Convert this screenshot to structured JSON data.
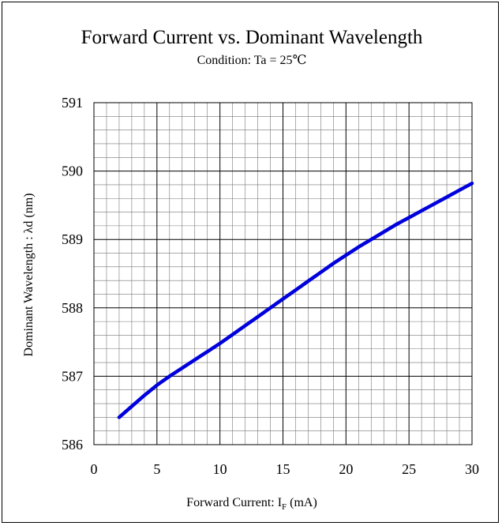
{
  "chart_data": {
    "type": "line",
    "title": "Forward Current vs. Dominant Wavelength",
    "subtitle": "Condition: Ta = 25℃",
    "xlabel": "Forward Current: I",
    "xlabel_sub": "F",
    "xlabel_unit": " (mA)",
    "ylabel": "Dominant Wavelength : λd (nm)",
    "xlim": [
      0,
      30
    ],
    "ylim": [
      586,
      591
    ],
    "xticks": [
      0,
      5,
      10,
      15,
      20,
      25,
      30
    ],
    "yticks": [
      586,
      587,
      588,
      589,
      590,
      591
    ],
    "x_minor_step": 1,
    "y_minor_step": 0.2,
    "grid": true,
    "legend": "none",
    "series": [
      {
        "color": "#0000dd",
        "x": [
          2,
          3,
          4,
          5,
          6,
          7,
          8,
          9,
          10,
          11,
          12,
          13,
          14,
          15,
          16,
          17,
          18,
          19,
          20,
          21,
          22,
          23,
          24,
          25,
          26,
          27,
          28,
          29,
          30
        ],
        "y": [
          586.4,
          586.56,
          586.72,
          586.87,
          587.0,
          587.12,
          587.24,
          587.36,
          587.48,
          587.61,
          587.74,
          587.87,
          588.0,
          588.13,
          588.26,
          588.39,
          588.52,
          588.65,
          588.77,
          588.89,
          589.0,
          589.11,
          589.22,
          589.32,
          589.42,
          589.52,
          589.62,
          589.72,
          589.82
        ]
      }
    ]
  }
}
